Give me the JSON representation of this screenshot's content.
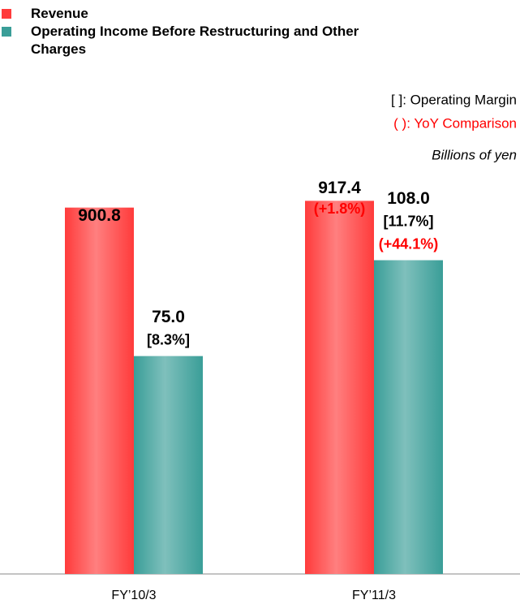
{
  "chart_data": {
    "type": "bar",
    "categories": [
      "FY’10/3",
      "FY’11/3"
    ],
    "series": [
      {
        "name": "Revenue",
        "color": "#ff3b3b",
        "values": [
          900.8,
          917.4
        ],
        "yoy_labels": [
          null,
          "(+1.8%)"
        ]
      },
      {
        "name": "Operating Income Before Restructuring and Other Charges",
        "color": "#3a9e98",
        "axis": "y2",
        "values": [
          75.0,
          108.0
        ],
        "value_labels": [
          "75.0",
          "108.0"
        ],
        "margin_labels": [
          "[8.3%]",
          "[11.7%]"
        ],
        "yoy_labels": [
          null,
          "(+44.1%)"
        ]
      }
    ],
    "notes": [
      "[ ]: Operating Margin",
      "( ): YoY Comparison",
      "Billions of yen"
    ],
    "ylim": [
      0,
      1000
    ],
    "y2lim": [
      0,
      140
    ],
    "label_color_yoy": "#ff0000"
  }
}
